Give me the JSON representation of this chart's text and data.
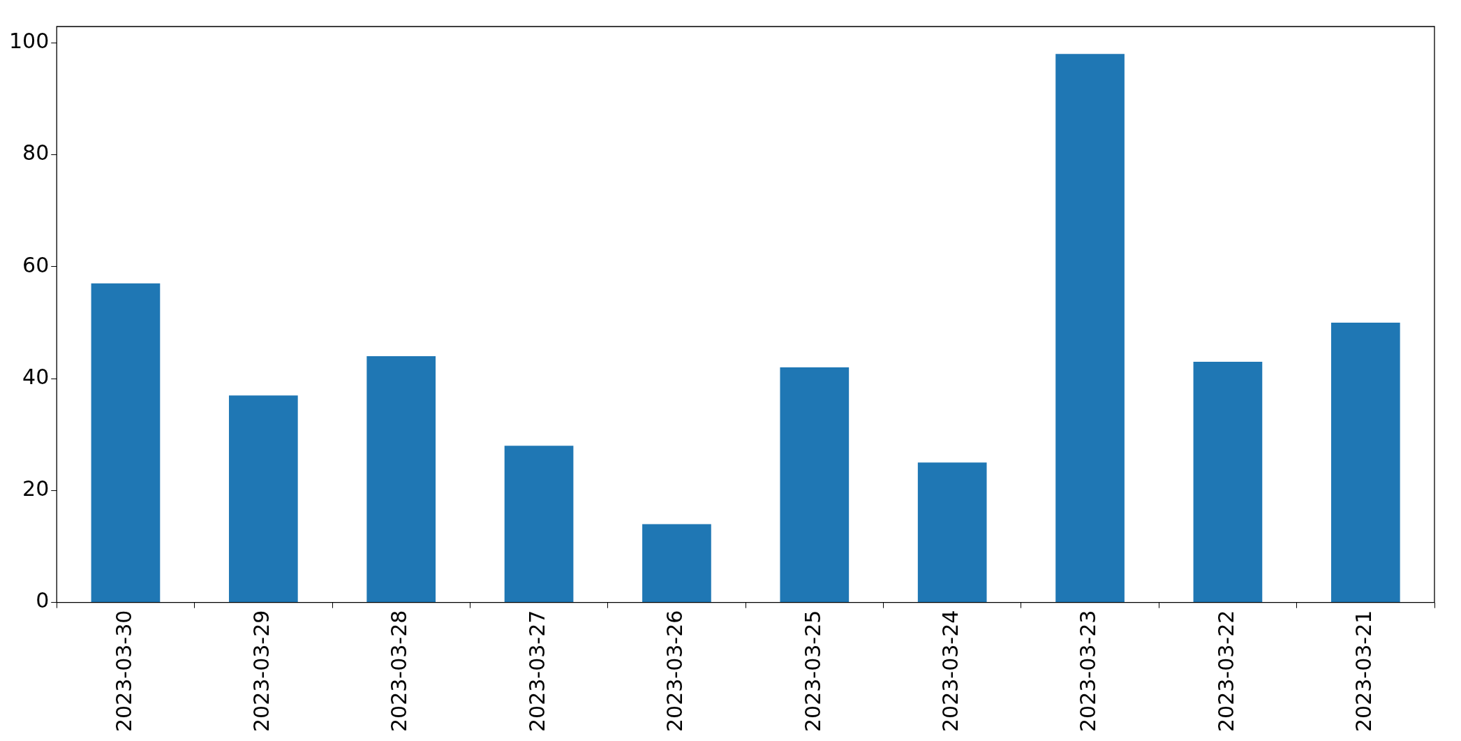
{
  "chart_data": {
    "type": "bar",
    "categories": [
      "2023-03-30",
      "2023-03-29",
      "2023-03-28",
      "2023-03-27",
      "2023-03-26",
      "2023-03-25",
      "2023-03-24",
      "2023-03-23",
      "2023-03-22",
      "2023-03-21"
    ],
    "values": [
      57,
      37,
      44,
      28,
      14,
      42,
      25,
      98,
      43,
      50
    ],
    "color": "#1f77b4",
    "ylim": [
      0,
      102.9
    ],
    "yticks": [
      0,
      20,
      40,
      60,
      80,
      100
    ]
  }
}
